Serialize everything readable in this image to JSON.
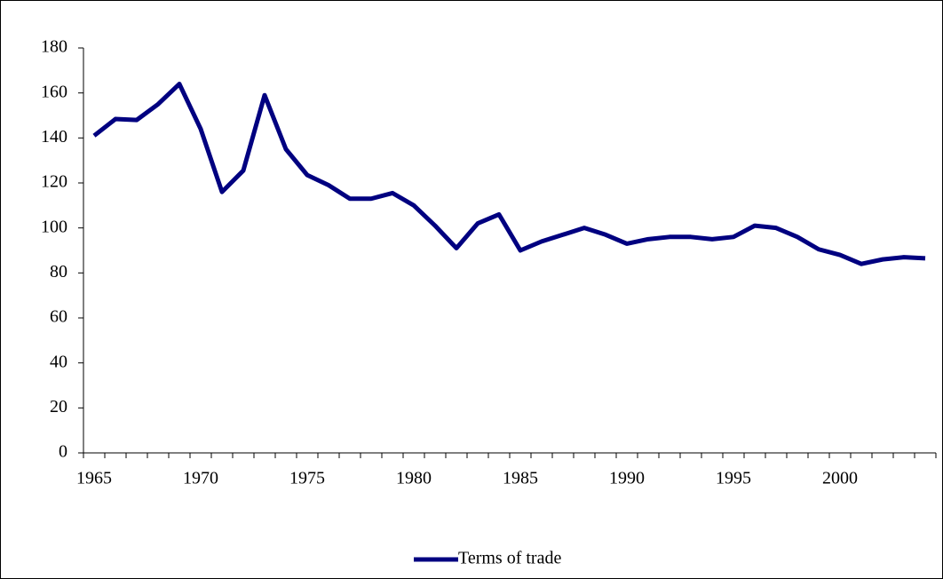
{
  "chart_data": {
    "type": "line",
    "x": [
      1965,
      1966,
      1967,
      1968,
      1969,
      1970,
      1971,
      1972,
      1973,
      1974,
      1975,
      1976,
      1977,
      1978,
      1979,
      1980,
      1981,
      1982,
      1983,
      1984,
      1985,
      1986,
      1987,
      1988,
      1989,
      1990,
      1991,
      1992,
      1993,
      1994,
      1995,
      1996,
      1997,
      1998,
      1999,
      2000,
      2001,
      2002,
      2003,
      2004
    ],
    "series": [
      {
        "name": "Terms of trade",
        "color": "#000080",
        "values": [
          141,
          148.4,
          148,
          155,
          164,
          144,
          116,
          125.5,
          159,
          135,
          123.5,
          119,
          113,
          113,
          115.5,
          110,
          101,
          91,
          102,
          106,
          90,
          94,
          97,
          100,
          97,
          93,
          95,
          96,
          96,
          95,
          96,
          101,
          100,
          96,
          90.5,
          88,
          84,
          86,
          87,
          86.5
        ]
      }
    ],
    "xlim": [
      1964.5,
      2004.5
    ],
    "xticks": [
      1965,
      1970,
      1975,
      1980,
      1985,
      1990,
      1995,
      2000
    ],
    "ylim": [
      0,
      180
    ],
    "yticks": [
      0,
      20,
      40,
      60,
      80,
      100,
      120,
      140,
      160,
      180
    ],
    "legend": "bottom"
  }
}
